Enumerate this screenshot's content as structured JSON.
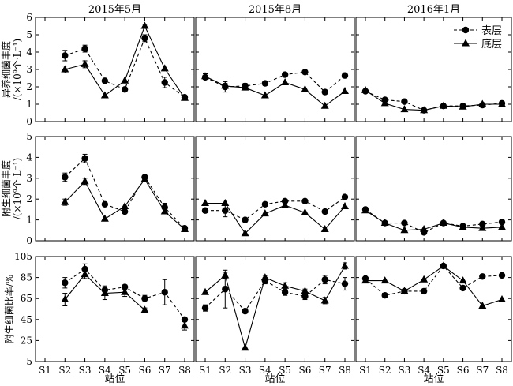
{
  "chart_data": {
    "type": "line",
    "columns": [
      "2015年5月",
      "2015年8月",
      "2016年1月"
    ],
    "x_categories": [
      "S1",
      "S2",
      "S3",
      "S4",
      "S5",
      "S6",
      "S7",
      "S8"
    ],
    "xlabel": "站位",
    "legend": {
      "placement": "top-right of 2016年1月 panel",
      "entries": [
        {
          "name": "表层",
          "marker": "circle",
          "line": "dashed"
        },
        {
          "name": "底层",
          "marker": "triangle",
          "line": "solid"
        }
      ]
    },
    "rows": [
      {
        "ylabel_lines": [
          "异养细菌丰度",
          "/(×10⁹个·L⁻¹)"
        ],
        "ylim": [
          0,
          6
        ],
        "yticks": [
          0,
          1,
          2,
          3,
          4,
          5,
          6
        ],
        "panels": [
          {
            "column": "2015年5月",
            "surface": [
              null,
              3.8,
              4.2,
              2.35,
              1.85,
              4.8,
              2.25,
              1.4
            ],
            "surface_err": [
              null,
              0.3,
              0.2,
              0,
              0,
              0.2,
              0.3,
              0.1
            ],
            "bottom": [
              null,
              3.0,
              3.3,
              1.5,
              2.35,
              5.5,
              3.05,
              1.35
            ],
            "bottom_err": [
              null,
              0.2,
              0.2,
              0,
              0,
              0.1,
              0,
              0.1
            ]
          },
          {
            "column": "2015年8月",
            "surface": [
              2.55,
              2.0,
              2.05,
              2.2,
              2.7,
              2.85,
              1.7,
              2.65
            ],
            "surface_err": [
              0,
              0.3,
              0.15,
              0,
              0,
              0,
              0,
              0.15
            ],
            "bottom": [
              2.6,
              2.05,
              1.95,
              1.5,
              2.25,
              1.85,
              0.9,
              1.75
            ],
            "bottom_err": [
              0.15,
              0.15,
              0,
              0,
              0,
              0,
              0,
              0
            ]
          },
          {
            "column": "2016年1月",
            "surface": [
              1.75,
              1.25,
              1.15,
              0.65,
              0.9,
              0.9,
              0.95,
              1.05
            ],
            "surface_err": [
              0,
              0,
              0,
              0,
              0,
              0,
              0,
              0
            ],
            "bottom": [
              1.8,
              1.05,
              0.7,
              0.65,
              0.9,
              0.85,
              1.0,
              1.0
            ],
            "bottom_err": [
              0,
              0,
              0,
              0,
              0,
              0,
              0,
              0
            ]
          }
        ]
      },
      {
        "ylabel_lines": [
          "附生细菌丰度",
          "/(×10⁹个·L⁻¹)"
        ],
        "ylim": [
          0,
          5
        ],
        "yticks": [
          0,
          1,
          2,
          3,
          4,
          5
        ],
        "panels": [
          {
            "column": "2015年5月",
            "surface": [
              null,
              3.05,
              3.95,
              1.75,
              1.4,
              3.05,
              1.6,
              0.6
            ],
            "surface_err": [
              null,
              0.2,
              0.2,
              0,
              0,
              0.15,
              0.2,
              0
            ],
            "bottom": [
              null,
              1.85,
              2.85,
              1.05,
              1.65,
              2.95,
              1.4,
              0.55
            ],
            "bottom_err": [
              null,
              0.15,
              0.15,
              0,
              0,
              0,
              0,
              0
            ]
          },
          {
            "column": "2015年8月",
            "surface": [
              1.45,
              1.45,
              1.0,
              1.75,
              1.9,
              1.9,
              1.4,
              2.1
            ],
            "surface_err": [
              0,
              0.3,
              0,
              0,
              0,
              0,
              0,
              0.1
            ],
            "bottom": [
              1.8,
              1.8,
              0.35,
              1.3,
              1.7,
              1.35,
              0.55,
              1.65
            ],
            "bottom_err": [
              0,
              0,
              0,
              0,
              0,
              0,
              0,
              0
            ]
          },
          {
            "column": "2016年1月",
            "surface": [
              1.5,
              0.85,
              0.85,
              0.4,
              0.85,
              0.7,
              0.8,
              0.9
            ],
            "surface_err": [
              0.1,
              0,
              0,
              0,
              0,
              0,
              0,
              0
            ],
            "bottom": [
              1.45,
              0.85,
              0.5,
              0.55,
              0.85,
              0.65,
              0.6,
              0.65
            ],
            "bottom_err": [
              0,
              0,
              0,
              0,
              0,
              0,
              0,
              0
            ]
          }
        ]
      },
      {
        "ylabel_lines": [
          "附生细菌比率/%"
        ],
        "ylim": [
          5,
          105
        ],
        "yticks": [
          5,
          25,
          45,
          65,
          85,
          105
        ],
        "panels": [
          {
            "column": "2015年5月",
            "surface": [
              null,
              80,
              93,
              73,
              76,
              65,
              71,
              45
            ],
            "surface_err": [
              null,
              5,
              5,
              4,
              2,
              3,
              12,
              2
            ],
            "bottom": [
              null,
              64,
              88,
              70,
              71,
              54,
              null,
              39
            ],
            "bottom_err": [
              null,
              6,
              4,
              6,
              4,
              2,
              null,
              4
            ]
          },
          {
            "column": "2015年8月",
            "surface": [
              56,
              74,
              53,
              82,
              71,
              67,
              83,
              79
            ],
            "surface_err": [
              3,
              18,
              0,
              3,
              3,
              3,
              4,
              6
            ],
            "bottom": [
              71,
              87,
              18,
              85,
              77,
              72,
              63,
              96
            ],
            "bottom_err": [
              2,
              3,
              0,
              2,
              3,
              2,
              3,
              3
            ]
          },
          {
            "column": "2016年1月",
            "surface": [
              84,
              68,
              72,
              72,
              96,
              75,
              86,
              87
            ],
            "surface_err": [
              0,
              0,
              0,
              0,
              0,
              0,
              0,
              0
            ],
            "bottom": [
              82,
              82,
              72,
              83,
              96,
              82,
              58,
              64
            ],
            "bottom_err": [
              0,
              0,
              0,
              0,
              0,
              0,
              0,
              0
            ]
          }
        ]
      }
    ],
    "grid": false
  }
}
